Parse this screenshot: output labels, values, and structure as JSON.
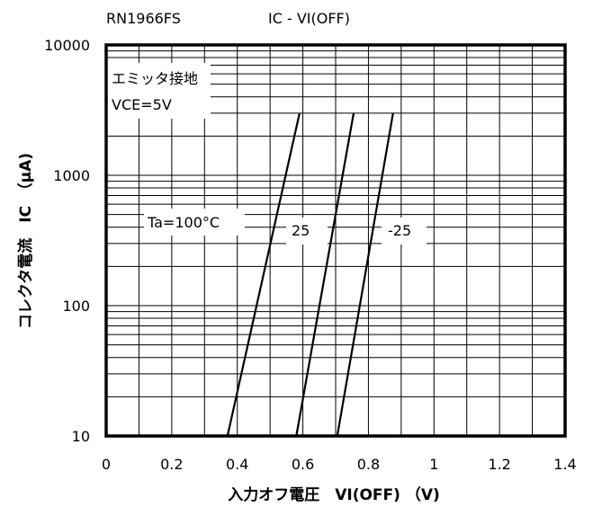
{
  "chart_data": {
    "type": "line",
    "part_number": "RN1966FS",
    "title": "IC - VI(OFF)",
    "xlabel": "入力オフ電圧　VI(OFF) （V)",
    "ylabel": "コレクタ電流　IC　（μA)",
    "x_scale": "linear",
    "y_scale": "log",
    "xlim": [
      0,
      1.4
    ],
    "ylim": [
      10,
      10000
    ],
    "x_ticks": [
      "0",
      "0.2",
      "0.4",
      "0.6",
      "0.8",
      "1",
      "1.2",
      "1.4"
    ],
    "y_ticks": [
      "10",
      "100",
      "1000",
      "10000"
    ],
    "grid": true,
    "conditions": [
      "エミッタ接地",
      "VCE=5V"
    ],
    "series": [
      {
        "name": "Ta=100°C",
        "points": [
          [
            0.37,
            10
          ],
          [
            0.59,
            3000
          ]
        ]
      },
      {
        "name": "25",
        "points": [
          [
            0.58,
            10
          ],
          [
            0.755,
            3000
          ]
        ]
      },
      {
        "name": "-25",
        "points": [
          [
            0.705,
            10
          ],
          [
            0.875,
            3000
          ]
        ]
      }
    ]
  }
}
